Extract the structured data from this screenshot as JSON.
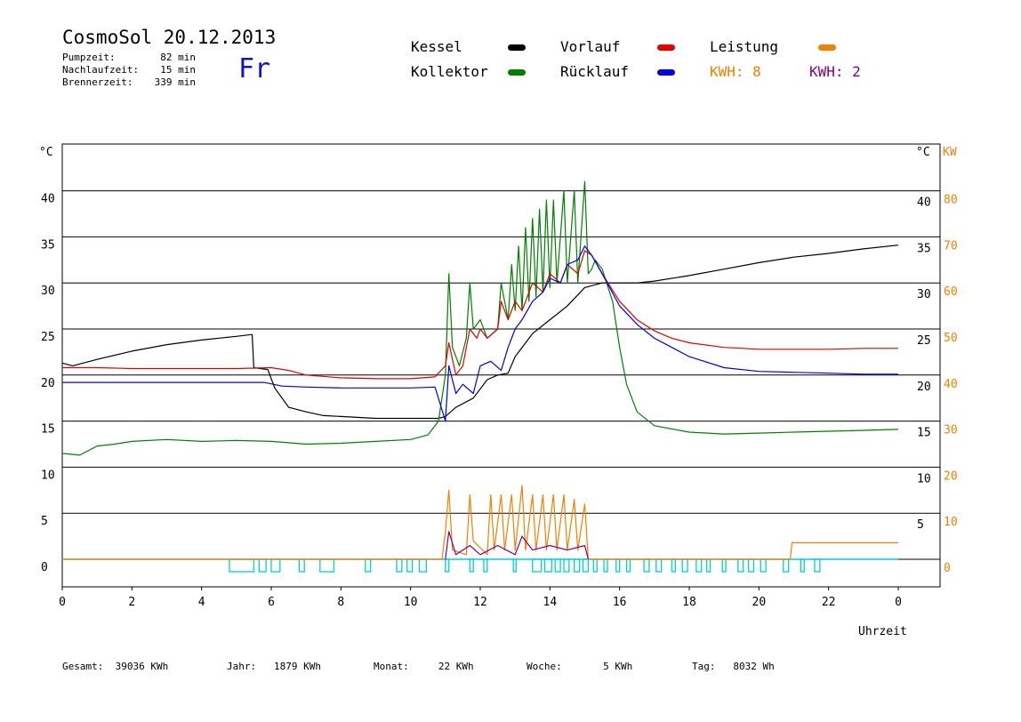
{
  "header": {
    "title": "CosmoSol 20.12.2013",
    "day": "Fr",
    "stats": [
      {
        "label": "Pumpzeit:",
        "value": "82 min"
      },
      {
        "label": "Nachlaufzeit:",
        "value": "15 min"
      },
      {
        "label": "Brennerzeit:",
        "value": "339 min"
      }
    ]
  },
  "legend": {
    "kessel": {
      "label": "Kessel",
      "color": "#000000"
    },
    "kollektor": {
      "label": "Kollektor",
      "color": "#008000"
    },
    "vorlauf": {
      "label": "Vorlauf",
      "color": "#e00000"
    },
    "ruecklauf": {
      "label": "Rücklauf",
      "color": "#0000e0"
    },
    "leistung": {
      "label": "Leistung",
      "color": "#f08000"
    },
    "kwh_orange": {
      "label": "KWH: 8",
      "color": "#f08000"
    },
    "kwh_purple": {
      "label": "KWH: 2",
      "color": "#800080"
    }
  },
  "footer": {
    "gesamt": {
      "label": "Gesamt:",
      "value": "39036 KWh"
    },
    "jahr": {
      "label": "Jahr:",
      "value": "1879 KWh"
    },
    "monat": {
      "label": "Monat:",
      "value": "22 KWh"
    },
    "woche": {
      "label": "Woche:",
      "value": "5 KWh"
    },
    "tag": {
      "label": "Tag:",
      "value": "8032 Wh"
    }
  },
  "chart_data": {
    "type": "line",
    "xlabel": "Uhrzeit",
    "ylabel_left": "°C",
    "ylabel_right_temp": "°C",
    "ylabel_right_power": "KW",
    "xlim": [
      0,
      24
    ],
    "ylim_temp": [
      0,
      40
    ],
    "ylim_power": [
      0,
      80
    ],
    "x_ticks": [
      "0",
      "2",
      "4",
      "6",
      "8",
      "10",
      "12",
      "14",
      "16",
      "18",
      "20",
      "22",
      "0"
    ],
    "y_ticks_left": [
      "0",
      "5",
      "10",
      "15",
      "20",
      "25",
      "30",
      "35",
      "40"
    ],
    "y_ticks_right_temp": [
      "5",
      "10",
      "15",
      "20",
      "25",
      "30",
      "35",
      "40"
    ],
    "y_ticks_right_power": [
      "0",
      "10",
      "20",
      "30",
      "40",
      "50",
      "60",
      "70",
      "80"
    ],
    "grid": "horizontal",
    "series": [
      {
        "name": "Kessel",
        "color": "#000000",
        "points": [
          [
            0,
            21.3
          ],
          [
            0.3,
            21.0
          ],
          [
            1,
            21.7
          ],
          [
            2,
            22.6
          ],
          [
            3,
            23.3
          ],
          [
            4,
            23.8
          ],
          [
            5,
            24.2
          ],
          [
            5.45,
            24.4
          ],
          [
            5.5,
            20.8
          ],
          [
            5.9,
            20.6
          ],
          [
            6.1,
            18.6
          ],
          [
            6.5,
            16.5
          ],
          [
            7,
            16.0
          ],
          [
            7.5,
            15.6
          ],
          [
            8,
            15.5
          ],
          [
            9,
            15.3
          ],
          [
            10,
            15.3
          ],
          [
            10.8,
            15.3
          ],
          [
            11.0,
            15.5
          ],
          [
            11.3,
            16.5
          ],
          [
            11.8,
            17.5
          ],
          [
            12.2,
            19.5
          ],
          [
            12.5,
            20.0
          ],
          [
            12.8,
            20.2
          ],
          [
            13,
            22.0
          ],
          [
            13.5,
            24.5
          ],
          [
            14,
            26.0
          ],
          [
            14.5,
            27.5
          ],
          [
            15,
            29.5
          ],
          [
            15.5,
            30.0
          ],
          [
            16,
            30.0
          ],
          [
            16.5,
            30.0
          ],
          [
            17,
            30.2
          ],
          [
            18,
            30.8
          ],
          [
            19,
            31.5
          ],
          [
            20,
            32.2
          ],
          [
            21,
            32.8
          ],
          [
            22,
            33.2
          ],
          [
            23,
            33.7
          ],
          [
            24,
            34.1
          ]
        ]
      },
      {
        "name": "Kollektor",
        "color": "#008000",
        "points": [
          [
            0,
            11.5
          ],
          [
            0.5,
            11.3
          ],
          [
            1,
            12.3
          ],
          [
            1.5,
            12.5
          ],
          [
            2,
            12.8
          ],
          [
            3,
            13.0
          ],
          [
            4,
            12.8
          ],
          [
            5,
            12.9
          ],
          [
            6,
            12.8
          ],
          [
            7,
            12.5
          ],
          [
            8,
            12.6
          ],
          [
            9,
            12.8
          ],
          [
            10,
            13.0
          ],
          [
            10.5,
            13.5
          ],
          [
            10.8,
            15.0
          ],
          [
            11.0,
            20.0
          ],
          [
            11.1,
            31.0
          ],
          [
            11.2,
            23.0
          ],
          [
            11.4,
            21.0
          ],
          [
            11.6,
            24.0
          ],
          [
            11.7,
            30.0
          ],
          [
            11.8,
            25.0
          ],
          [
            12.0,
            26.0
          ],
          [
            12.2,
            24.0
          ],
          [
            12.5,
            25.0
          ],
          [
            12.6,
            30.0
          ],
          [
            12.8,
            26.0
          ],
          [
            12.9,
            32.0
          ],
          [
            13.0,
            27.0
          ],
          [
            13.1,
            34.0
          ],
          [
            13.2,
            27.0
          ],
          [
            13.3,
            36.0
          ],
          [
            13.4,
            28.0
          ],
          [
            13.5,
            37.0
          ],
          [
            13.6,
            28.5
          ],
          [
            13.7,
            38.0
          ],
          [
            13.8,
            29.0
          ],
          [
            13.9,
            39.0
          ],
          [
            14.0,
            29.5
          ],
          [
            14.1,
            39.0
          ],
          [
            14.2,
            30.0
          ],
          [
            14.4,
            40.0
          ],
          [
            14.5,
            30.0
          ],
          [
            14.7,
            40.0
          ],
          [
            14.8,
            30.0
          ],
          [
            15.0,
            41.0
          ],
          [
            15.1,
            31.0
          ],
          [
            15.2,
            31.5
          ],
          [
            15.3,
            32.5
          ],
          [
            15.5,
            31.5
          ],
          [
            15.8,
            28.0
          ],
          [
            16.0,
            23.0
          ],
          [
            16.2,
            19.0
          ],
          [
            16.5,
            16.0
          ],
          [
            17,
            14.5
          ],
          [
            18,
            13.8
          ],
          [
            19,
            13.6
          ],
          [
            20,
            13.7
          ],
          [
            21,
            13.8
          ],
          [
            22,
            13.9
          ],
          [
            23,
            14.0
          ],
          [
            24,
            14.1
          ]
        ]
      },
      {
        "name": "Vorlauf",
        "color": "#e00000",
        "points": [
          [
            0,
            20.8
          ],
          [
            1,
            20.8
          ],
          [
            2,
            20.7
          ],
          [
            3,
            20.7
          ],
          [
            4,
            20.7
          ],
          [
            5,
            20.7
          ],
          [
            6,
            20.8
          ],
          [
            6.5,
            20.5
          ],
          [
            7,
            20.0
          ],
          [
            8,
            19.7
          ],
          [
            9,
            19.6
          ],
          [
            10,
            19.6
          ],
          [
            10.7,
            19.8
          ],
          [
            11.0,
            21.0
          ],
          [
            11.1,
            23.5
          ],
          [
            11.3,
            20.0
          ],
          [
            11.5,
            21.0
          ],
          [
            11.7,
            25.0
          ],
          [
            11.9,
            24.0
          ],
          [
            12.0,
            25.0
          ],
          [
            12.2,
            24.0
          ],
          [
            12.5,
            25.0
          ],
          [
            12.6,
            28.0
          ],
          [
            12.8,
            26.0
          ],
          [
            13.0,
            28.0
          ],
          [
            13.2,
            27.0
          ],
          [
            13.5,
            30.0
          ],
          [
            13.8,
            29.0
          ],
          [
            14.0,
            31.0
          ],
          [
            14.3,
            30.0
          ],
          [
            14.5,
            32.0
          ],
          [
            14.8,
            31.0
          ],
          [
            15.0,
            33.5
          ],
          [
            15.2,
            33.0
          ],
          [
            15.5,
            31.0
          ],
          [
            16,
            28.0
          ],
          [
            16.5,
            26.0
          ],
          [
            17,
            24.8
          ],
          [
            17.5,
            24.0
          ],
          [
            18,
            23.5
          ],
          [
            19,
            23.0
          ],
          [
            20,
            22.8
          ],
          [
            21,
            22.8
          ],
          [
            22,
            22.8
          ],
          [
            23,
            22.9
          ],
          [
            24,
            22.9
          ]
        ]
      },
      {
        "name": "Rücklauf",
        "color": "#0000e0",
        "points": [
          [
            0,
            19.2
          ],
          [
            1,
            19.2
          ],
          [
            2,
            19.2
          ],
          [
            3,
            19.2
          ],
          [
            4,
            19.2
          ],
          [
            5,
            19.2
          ],
          [
            5.8,
            19.2
          ],
          [
            6.3,
            18.8
          ],
          [
            7,
            18.7
          ],
          [
            8,
            18.6
          ],
          [
            9,
            18.6
          ],
          [
            10,
            18.6
          ],
          [
            10.7,
            18.7
          ],
          [
            11.0,
            15.0
          ],
          [
            11.1,
            21.0
          ],
          [
            11.3,
            18.0
          ],
          [
            11.5,
            19.0
          ],
          [
            11.8,
            18.0
          ],
          [
            12.0,
            21.0
          ],
          [
            12.3,
            21.5
          ],
          [
            12.6,
            20.5
          ],
          [
            12.8,
            23.0
          ],
          [
            13.0,
            25.0
          ],
          [
            13.2,
            26.0
          ],
          [
            13.5,
            28.0
          ],
          [
            13.8,
            29.0
          ],
          [
            14.0,
            30.5
          ],
          [
            14.3,
            30.0
          ],
          [
            14.5,
            32.0
          ],
          [
            14.8,
            32.5
          ],
          [
            15.0,
            34.0
          ],
          [
            15.2,
            33.0
          ],
          [
            15.5,
            31.0
          ],
          [
            16,
            27.5
          ],
          [
            16.5,
            25.5
          ],
          [
            17,
            24.0
          ],
          [
            17.5,
            23.0
          ],
          [
            18,
            22.0
          ],
          [
            19,
            20.8
          ],
          [
            20,
            20.4
          ],
          [
            21,
            20.3
          ],
          [
            22,
            20.2
          ],
          [
            23,
            20.1
          ],
          [
            24,
            20.1
          ]
        ]
      },
      {
        "name": "Leistung",
        "color": "#f08000",
        "points": [
          [
            0,
            0
          ],
          [
            10.9,
            0
          ],
          [
            11.0,
            3.0
          ],
          [
            11.1,
            7.5
          ],
          [
            11.2,
            1.0
          ],
          [
            11.6,
            0.5
          ],
          [
            11.7,
            7.0
          ],
          [
            11.8,
            2.0
          ],
          [
            12.2,
            0.5
          ],
          [
            12.3,
            7.0
          ],
          [
            12.4,
            1.0
          ],
          [
            12.6,
            7.0
          ],
          [
            12.7,
            1.0
          ],
          [
            12.9,
            7.0
          ],
          [
            13.0,
            1.0
          ],
          [
            13.2,
            8.0
          ],
          [
            13.3,
            1.0
          ],
          [
            13.5,
            7.0
          ],
          [
            13.6,
            1.0
          ],
          [
            13.8,
            7.0
          ],
          [
            13.9,
            1.0
          ],
          [
            14.1,
            7.0
          ],
          [
            14.2,
            1.0
          ],
          [
            14.4,
            7.0
          ],
          [
            14.5,
            1.0
          ],
          [
            14.7,
            6.5
          ],
          [
            14.8,
            1.0
          ],
          [
            15.0,
            6.0
          ],
          [
            15.1,
            0
          ],
          [
            20.9,
            0
          ],
          [
            20.95,
            1.8
          ],
          [
            24,
            1.8
          ]
        ]
      },
      {
        "name": "KWH 2",
        "color": "#800080",
        "points": [
          [
            11.0,
            0
          ],
          [
            11.1,
            3.0
          ],
          [
            11.3,
            0.5
          ],
          [
            11.7,
            1.5
          ],
          [
            12.0,
            0.5
          ],
          [
            12.5,
            1.5
          ],
          [
            13.0,
            0.5
          ],
          [
            13.2,
            2.5
          ],
          [
            13.5,
            1.0
          ],
          [
            14.0,
            1.5
          ],
          [
            14.5,
            1.0
          ],
          [
            15.0,
            1.5
          ],
          [
            15.1,
            0
          ]
        ]
      }
    ],
    "pump_on_intervals": [
      [
        4.8,
        5.5
      ],
      [
        5.65,
        5.85
      ],
      [
        6.0,
        6.25
      ],
      [
        6.8,
        6.95
      ],
      [
        7.4,
        7.8
      ],
      [
        8.7,
        8.85
      ],
      [
        9.6,
        9.75
      ],
      [
        9.9,
        10.05
      ],
      [
        10.25,
        10.45
      ],
      [
        11.0,
        11.1
      ],
      [
        11.7,
        11.8
      ],
      [
        12.1,
        12.2
      ],
      [
        12.95,
        13.0
      ],
      [
        13.5,
        13.75
      ],
      [
        13.85,
        14.05
      ],
      [
        14.15,
        14.3
      ],
      [
        14.4,
        14.55
      ],
      [
        14.7,
        14.85
      ],
      [
        14.95,
        15.1
      ],
      [
        15.25,
        15.35
      ],
      [
        15.55,
        15.65
      ],
      [
        15.9,
        16.0
      ],
      [
        16.2,
        16.3
      ],
      [
        16.7,
        16.85
      ],
      [
        17.05,
        17.2
      ],
      [
        17.5,
        17.6
      ],
      [
        17.8,
        17.95
      ],
      [
        18.2,
        18.35
      ],
      [
        18.5,
        18.6
      ],
      [
        18.95,
        19.05
      ],
      [
        19.4,
        19.55
      ],
      [
        19.7,
        19.85
      ],
      [
        20.05,
        20.2
      ],
      [
        20.7,
        20.85
      ],
      [
        21.2,
        21.3
      ],
      [
        21.6,
        21.75
      ]
    ],
    "pump_color": "#00d0d0"
  }
}
